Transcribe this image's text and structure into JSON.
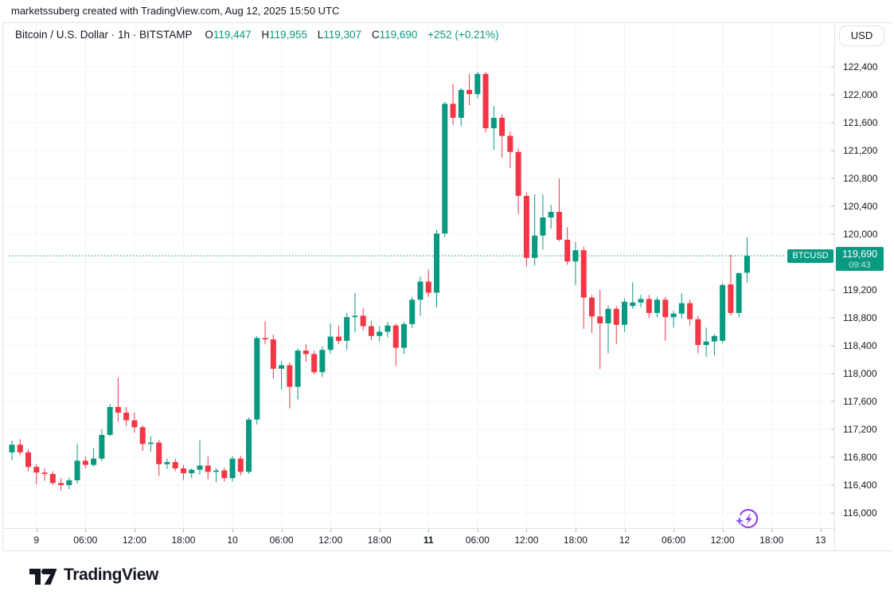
{
  "attribution": "marketssuberg created with TradingView.com, Aug 12, 2025 15:50 UTC",
  "header": {
    "symbol_title": "Bitcoin / U.S. Dollar · 1h · BITSTAMP",
    "ohlc": [
      {
        "k": "O",
        "v": "119,447"
      },
      {
        "k": "H",
        "v": "119,955"
      },
      {
        "k": "L",
        "v": "119,307"
      },
      {
        "k": "C",
        "v": "119,690"
      }
    ],
    "change": "+252 (+0.21%)"
  },
  "price_axis": {
    "currency_button": "USD",
    "ticks": [
      {
        "label": "122,400",
        "value": 122400
      },
      {
        "label": "122,000",
        "value": 122000
      },
      {
        "label": "121,600",
        "value": 121600
      },
      {
        "label": "121,200",
        "value": 121200
      },
      {
        "label": "120,800",
        "value": 120800
      },
      {
        "label": "120,400",
        "value": 120400
      },
      {
        "label": "120,000",
        "value": 120000
      },
      {
        "label": "119,200",
        "value": 119200
      },
      {
        "label": "118,800",
        "value": 118800
      },
      {
        "label": "118,400",
        "value": 118400
      },
      {
        "label": "118,000",
        "value": 118000
      },
      {
        "label": "117,600",
        "value": 117600
      },
      {
        "label": "117,200",
        "value": 117200
      },
      {
        "label": "116,800",
        "value": 116800
      },
      {
        "label": "116,400",
        "value": 116400
      },
      {
        "label": "116,000",
        "value": 116000
      }
    ],
    "price_label": {
      "symbol": "BTCUSD",
      "price": "119,690",
      "countdown": "09:43"
    }
  },
  "time_axis": {
    "ticks": [
      {
        "i": 3,
        "label": "9",
        "bold": false
      },
      {
        "i": 9,
        "label": "06:00",
        "bold": false
      },
      {
        "i": 15,
        "label": "12:00",
        "bold": false
      },
      {
        "i": 21,
        "label": "18:00",
        "bold": false
      },
      {
        "i": 27,
        "label": "10",
        "bold": false
      },
      {
        "i": 33,
        "label": "06:00",
        "bold": false
      },
      {
        "i": 39,
        "label": "12:00",
        "bold": false
      },
      {
        "i": 45,
        "label": "18:00",
        "bold": false
      },
      {
        "i": 51,
        "label": "11",
        "bold": true
      },
      {
        "i": 57,
        "label": "06:00",
        "bold": false
      },
      {
        "i": 63,
        "label": "12:00",
        "bold": false
      },
      {
        "i": 69,
        "label": "18:00",
        "bold": false
      },
      {
        "i": 75,
        "label": "12",
        "bold": false
      },
      {
        "i": 81,
        "label": "06:00",
        "bold": false
      },
      {
        "i": 87,
        "label": "12:00",
        "bold": false
      },
      {
        "i": 93,
        "label": "18:00",
        "bold": false
      },
      {
        "i": 99,
        "label": "13",
        "bold": false
      }
    ]
  },
  "footer": {
    "brand": "TradingView"
  },
  "colors": {
    "up": "#089981",
    "down": "#f23645",
    "grid": "#f0f3fa",
    "border": "#e0e3eb",
    "accent_purple": "#9334e6",
    "sparkle_purple": "#7e57ff"
  },
  "chart_data": {
    "type": "candlestick",
    "symbol": "BTCUSD",
    "exchange": "BITSTAMP",
    "interval": "1h",
    "title": "Bitcoin / U.S. Dollar",
    "last_price": 119690,
    "grid_step": 400,
    "visible_price_range": [
      115770,
      123030
    ],
    "columns": [
      "time",
      "open",
      "high",
      "low",
      "close"
    ],
    "candles": [
      [
        "Aug 8 21:00",
        116870,
        117040,
        116760,
        116980
      ],
      [
        "Aug 8 22:00",
        116980,
        117060,
        116830,
        116870
      ],
      [
        "Aug 8 23:00",
        116870,
        116910,
        116600,
        116660
      ],
      [
        "Aug 9 00:00",
        116660,
        116700,
        116410,
        116580
      ],
      [
        "Aug 9 01:00",
        116580,
        116640,
        116460,
        116560
      ],
      [
        "Aug 9 02:00",
        116560,
        116600,
        116400,
        116430
      ],
      [
        "Aug 9 03:00",
        116430,
        116500,
        116320,
        116400
      ],
      [
        "Aug 9 04:00",
        116400,
        116510,
        116340,
        116470
      ],
      [
        "Aug 9 05:00",
        116470,
        116990,
        116420,
        116750
      ],
      [
        "Aug 9 06:00",
        116750,
        116810,
        116640,
        116690
      ],
      [
        "Aug 9 07:00",
        116690,
        116930,
        116660,
        116780
      ],
      [
        "Aug 9 08:00",
        116780,
        117200,
        116740,
        117120
      ],
      [
        "Aug 9 09:00",
        117120,
        117560,
        117100,
        117520
      ],
      [
        "Aug 9 10:00",
        117520,
        117940,
        117310,
        117440
      ],
      [
        "Aug 9 11:00",
        117440,
        117520,
        117250,
        117330
      ],
      [
        "Aug 9 12:00",
        117330,
        117440,
        117150,
        117230
      ],
      [
        "Aug 9 13:00",
        117230,
        117260,
        116890,
        116990
      ],
      [
        "Aug 9 14:00",
        116990,
        117100,
        116880,
        117010
      ],
      [
        "Aug 9 15:00",
        117010,
        117050,
        116530,
        116700
      ],
      [
        "Aug 9 16:00",
        116700,
        116780,
        116630,
        116730
      ],
      [
        "Aug 9 17:00",
        116730,
        116780,
        116600,
        116640
      ],
      [
        "Aug 9 18:00",
        116640,
        116690,
        116470,
        116570
      ],
      [
        "Aug 9 19:00",
        116570,
        116640,
        116500,
        116620
      ],
      [
        "Aug 9 20:00",
        116620,
        117040,
        116550,
        116680
      ],
      [
        "Aug 9 21:00",
        116680,
        116810,
        116480,
        116590
      ],
      [
        "Aug 9 22:00",
        116590,
        116640,
        116440,
        116610
      ],
      [
        "Aug 9 23:00",
        116610,
        116650,
        116450,
        116500
      ],
      [
        "Aug 10 00:00",
        116500,
        116820,
        116450,
        116780
      ],
      [
        "Aug 10 01:00",
        116780,
        116820,
        116540,
        116590
      ],
      [
        "Aug 10 02:00",
        116590,
        117370,
        116560,
        117340
      ],
      [
        "Aug 10 03:00",
        117340,
        118540,
        117270,
        118510
      ],
      [
        "Aug 10 04:00",
        118510,
        118750,
        118420,
        118490
      ],
      [
        "Aug 10 05:00",
        118490,
        118560,
        117930,
        118070
      ],
      [
        "Aug 10 06:00",
        118070,
        118180,
        117770,
        118120
      ],
      [
        "Aug 10 07:00",
        118120,
        118160,
        117500,
        117810
      ],
      [
        "Aug 10 08:00",
        117810,
        118360,
        117630,
        118330
      ],
      [
        "Aug 10 09:00",
        118330,
        118420,
        118170,
        118280
      ],
      [
        "Aug 10 10:00",
        118280,
        118330,
        117990,
        118020
      ],
      [
        "Aug 10 11:00",
        118020,
        118390,
        117950,
        118340
      ],
      [
        "Aug 10 12:00",
        118340,
        118720,
        118290,
        118530
      ],
      [
        "Aug 10 13:00",
        118530,
        118690,
        118420,
        118470
      ],
      [
        "Aug 10 14:00",
        118470,
        118870,
        118340,
        118810
      ],
      [
        "Aug 10 15:00",
        118810,
        119160,
        118590,
        118830
      ],
      [
        "Aug 10 16:00",
        118830,
        118940,
        118620,
        118680
      ],
      [
        "Aug 10 17:00",
        118680,
        118760,
        118480,
        118540
      ],
      [
        "Aug 10 18:00",
        118540,
        118680,
        118460,
        118600
      ],
      [
        "Aug 10 19:00",
        118600,
        118740,
        118520,
        118690
      ],
      [
        "Aug 10 20:00",
        118690,
        118720,
        118110,
        118370
      ],
      [
        "Aug 10 21:00",
        118370,
        118740,
        118280,
        118710
      ],
      [
        "Aug 10 22:00",
        118710,
        119100,
        118650,
        119060
      ],
      [
        "Aug 10 23:00",
        119060,
        119390,
        118830,
        119320
      ],
      [
        "Aug 11 00:00",
        119320,
        119490,
        119100,
        119160
      ],
      [
        "Aug 11 01:00",
        119160,
        120060,
        118950,
        120010
      ],
      [
        "Aug 11 02:00",
        120010,
        121900,
        119960,
        121870
      ],
      [
        "Aug 11 03:00",
        121870,
        122160,
        121570,
        121670
      ],
      [
        "Aug 11 04:00",
        121670,
        122100,
        121550,
        122070
      ],
      [
        "Aug 11 05:00",
        122070,
        122300,
        121850,
        122010
      ],
      [
        "Aug 11 06:00",
        122010,
        122330,
        121950,
        122300
      ],
      [
        "Aug 11 07:00",
        122300,
        122330,
        121460,
        121520
      ],
      [
        "Aug 11 08:00",
        121520,
        121840,
        121210,
        121670
      ],
      [
        "Aug 11 09:00",
        121670,
        121720,
        121100,
        121410
      ],
      [
        "Aug 11 10:00",
        121410,
        121470,
        120950,
        121180
      ],
      [
        "Aug 11 11:00",
        121180,
        121230,
        120290,
        120550
      ],
      [
        "Aug 11 12:00",
        120550,
        120600,
        119540,
        119660
      ],
      [
        "Aug 11 13:00",
        119660,
        120570,
        119550,
        119980
      ],
      [
        "Aug 11 14:00",
        119980,
        120570,
        119780,
        120240
      ],
      [
        "Aug 11 15:00",
        120240,
        120420,
        120080,
        120320
      ],
      [
        "Aug 11 16:00",
        120320,
        120800,
        119900,
        119920
      ],
      [
        "Aug 11 17:00",
        119920,
        120100,
        119560,
        119610
      ],
      [
        "Aug 11 18:00",
        119610,
        119890,
        119270,
        119770
      ],
      [
        "Aug 11 19:00",
        119770,
        119820,
        118640,
        119090
      ],
      [
        "Aug 11 20:00",
        119090,
        119130,
        118580,
        118820
      ],
      [
        "Aug 11 21:00",
        118820,
        119200,
        118060,
        118720
      ],
      [
        "Aug 11 22:00",
        118720,
        118980,
        118290,
        118930
      ],
      [
        "Aug 11 23:00",
        118930,
        118970,
        118420,
        118700
      ],
      [
        "Aug 12 00:00",
        118700,
        119080,
        118600,
        119030
      ],
      [
        "Aug 12 01:00",
        118970,
        119310,
        118930,
        119020
      ],
      [
        "Aug 12 02:00",
        119020,
        119130,
        118950,
        119070
      ],
      [
        "Aug 12 03:00",
        119070,
        119130,
        118800,
        118870
      ],
      [
        "Aug 12 04:00",
        118870,
        119100,
        118810,
        119060
      ],
      [
        "Aug 12 05:00",
        119060,
        119100,
        118470,
        118810
      ],
      [
        "Aug 12 06:00",
        118810,
        118900,
        118660,
        118860
      ],
      [
        "Aug 12 07:00",
        118860,
        119150,
        118790,
        119010
      ],
      [
        "Aug 12 08:00",
        119010,
        119060,
        118690,
        118780
      ],
      [
        "Aug 12 09:00",
        118780,
        118830,
        118290,
        118410
      ],
      [
        "Aug 12 10:00",
        118410,
        118660,
        118240,
        118460
      ],
      [
        "Aug 12 11:00",
        118460,
        118570,
        118260,
        118540
      ],
      [
        "Aug 12 12:00",
        118470,
        119300,
        118440,
        119270
      ],
      [
        "Aug 12 13:00",
        119280,
        119710,
        118830,
        118870
      ],
      [
        "Aug 12 14:00",
        118870,
        119450,
        118810,
        119440
      ],
      [
        "Aug 12 15:00",
        119447,
        119955,
        119307,
        119690
      ]
    ]
  }
}
